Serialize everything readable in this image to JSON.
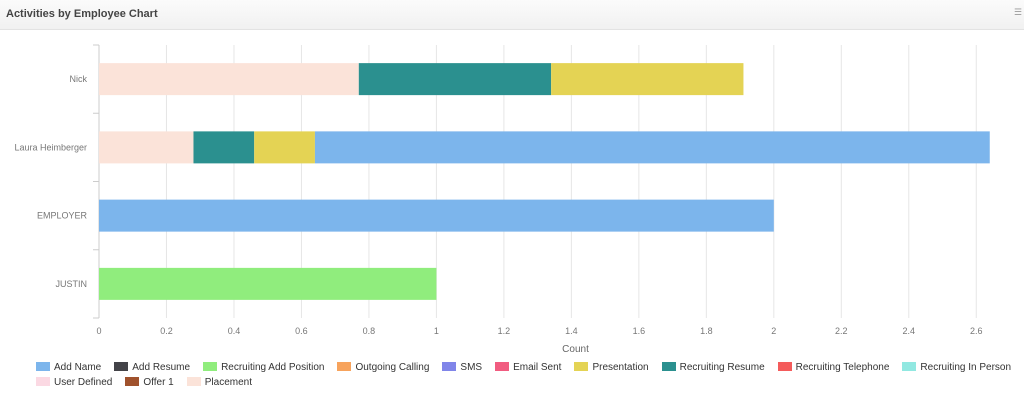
{
  "header": {
    "title": "Activities by Employee Chart",
    "icon": "menu-icon"
  },
  "chart_data": {
    "type": "bar",
    "orientation": "horizontal",
    "stacked": true,
    "title": "",
    "xlabel": "Count",
    "ylabel": "",
    "xlim": [
      0,
      2.7
    ],
    "x_ticks": [
      0,
      0.2,
      0.4,
      0.6,
      0.8,
      1,
      1.2,
      1.4,
      1.6,
      1.8,
      2,
      2.2,
      2.4,
      2.6
    ],
    "grid": "vertical",
    "legend_position": "bottom",
    "categories": [
      "Nick",
      "Laura Heimberger",
      "EMPLOYER",
      "JUSTIN"
    ],
    "series": [
      {
        "name": "Add Name",
        "color": "#7cb5ec",
        "values": [
          0,
          2,
          2,
          0
        ]
      },
      {
        "name": "Add Resume",
        "color": "#434348",
        "values": [
          0,
          0,
          0,
          0
        ]
      },
      {
        "name": "Recruiting Add Position",
        "color": "#90ed7d",
        "values": [
          0,
          0,
          0,
          1
        ]
      },
      {
        "name": "Outgoing Calling",
        "color": "#f7a35c",
        "values": [
          0,
          0,
          0,
          0
        ]
      },
      {
        "name": "SMS",
        "color": "#8085e9",
        "values": [
          0,
          0,
          0,
          0
        ]
      },
      {
        "name": "Email Sent",
        "color": "#f15c80",
        "values": [
          0,
          0,
          0,
          0
        ]
      },
      {
        "name": "Presentation",
        "color": "#e4d354",
        "values": [
          0.57,
          0.18,
          0,
          0
        ]
      },
      {
        "name": "Recruiting Resume",
        "color": "#2b908f",
        "values": [
          0.57,
          0.18,
          0,
          0
        ]
      },
      {
        "name": "Recruiting Telephone",
        "color": "#f45b5b",
        "values": [
          0,
          0,
          0,
          0
        ]
      },
      {
        "name": "Recruiting In Person",
        "color": "#91e8e1",
        "values": [
          0,
          0,
          0,
          0
        ]
      },
      {
        "name": "User Defined",
        "color": "#fbd9e3",
        "values": [
          0,
          0,
          0,
          0
        ]
      },
      {
        "name": "Offer 1",
        "color": "#a0522d",
        "values": [
          0,
          0,
          0,
          0
        ]
      },
      {
        "name": "Placement",
        "color": "#fbe3d9",
        "values": [
          0.77,
          0.28,
          0,
          0
        ]
      }
    ]
  }
}
